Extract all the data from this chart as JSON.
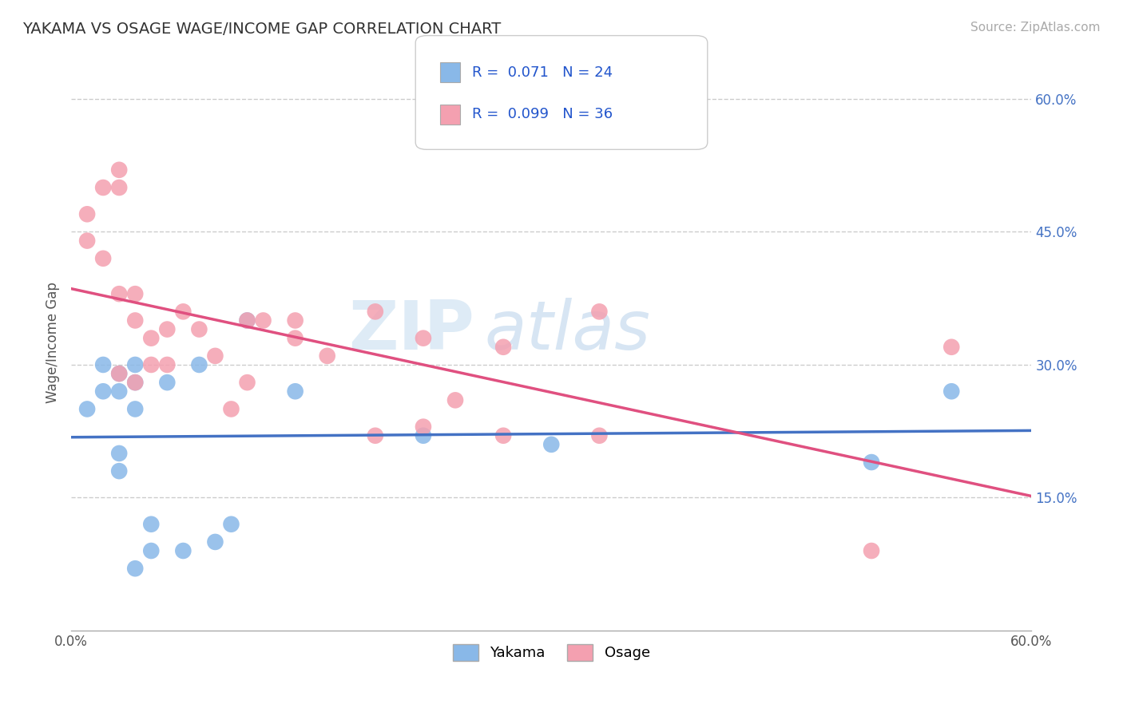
{
  "title": "YAKAMA VS OSAGE WAGE/INCOME GAP CORRELATION CHART",
  "source": "Source: ZipAtlas.com",
  "ylabel": "Wage/Income Gap",
  "xmin": 0.0,
  "xmax": 0.6,
  "ymin": 0.0,
  "ymax": 0.65,
  "yticks": [
    0.15,
    0.3,
    0.45,
    0.6
  ],
  "ytick_labels": [
    "15.0%",
    "30.0%",
    "45.0%",
    "60.0%"
  ],
  "grid_color": "#cccccc",
  "background_color": "#ffffff",
  "yakama_color": "#89b8e8",
  "osage_color": "#f4a0b0",
  "yakama_line_color": "#4472c4",
  "osage_line_color": "#e05080",
  "yakama_R": 0.071,
  "yakama_N": 24,
  "osage_R": 0.099,
  "osage_N": 36,
  "watermark_zip": "ZIP",
  "watermark_atlas": "atlas",
  "yakama_x": [
    0.01,
    0.02,
    0.02,
    0.03,
    0.03,
    0.03,
    0.03,
    0.04,
    0.04,
    0.04,
    0.04,
    0.05,
    0.05,
    0.06,
    0.07,
    0.08,
    0.09,
    0.1,
    0.11,
    0.14,
    0.22,
    0.3,
    0.5,
    0.55
  ],
  "yakama_y": [
    0.25,
    0.3,
    0.27,
    0.29,
    0.27,
    0.2,
    0.18,
    0.3,
    0.28,
    0.25,
    0.07,
    0.09,
    0.12,
    0.28,
    0.09,
    0.3,
    0.1,
    0.12,
    0.35,
    0.27,
    0.22,
    0.21,
    0.19,
    0.27
  ],
  "osage_x": [
    0.01,
    0.01,
    0.02,
    0.02,
    0.03,
    0.03,
    0.03,
    0.03,
    0.04,
    0.04,
    0.04,
    0.05,
    0.05,
    0.06,
    0.06,
    0.07,
    0.08,
    0.09,
    0.1,
    0.11,
    0.11,
    0.12,
    0.14,
    0.14,
    0.16,
    0.19,
    0.19,
    0.22,
    0.22,
    0.24,
    0.27,
    0.27,
    0.33,
    0.33,
    0.5,
    0.55
  ],
  "osage_y": [
    0.47,
    0.44,
    0.5,
    0.42,
    0.52,
    0.5,
    0.38,
    0.29,
    0.38,
    0.35,
    0.28,
    0.33,
    0.3,
    0.34,
    0.3,
    0.36,
    0.34,
    0.31,
    0.25,
    0.35,
    0.28,
    0.35,
    0.35,
    0.33,
    0.31,
    0.22,
    0.36,
    0.33,
    0.23,
    0.26,
    0.32,
    0.22,
    0.36,
    0.22,
    0.09,
    0.32
  ]
}
